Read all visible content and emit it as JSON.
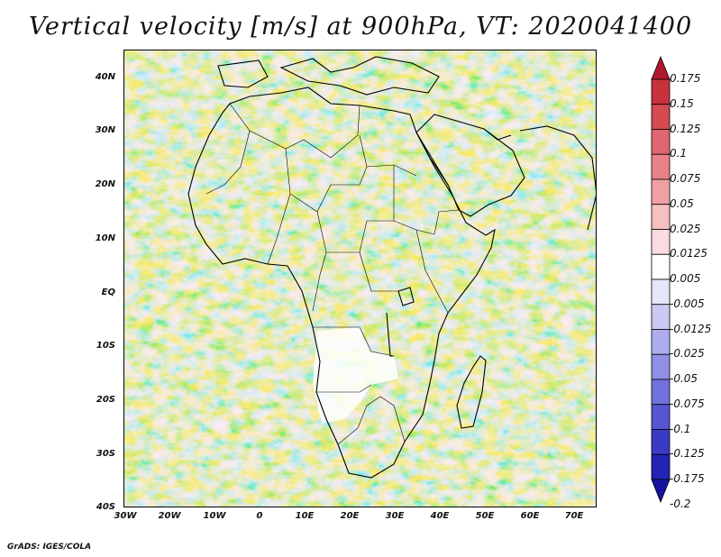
{
  "title": "Vertical velocity [m/s] at 900hPa, VT: 2020041400",
  "credit": "GrADS: IGES/COLA",
  "map": {
    "region": "Africa and surrounding oceans",
    "variable": "Vertical velocity",
    "units": "m/s",
    "level": "900hPa",
    "valid_time": "2020041400",
    "lat_labels": [
      "40N",
      "30N",
      "20N",
      "10N",
      "EQ",
      "10S",
      "20S",
      "30S",
      "40S"
    ],
    "lon_labels": [
      "30W",
      "20W",
      "10W",
      "0",
      "10E",
      "20E",
      "30E",
      "40E",
      "50E",
      "60E",
      "70E"
    ],
    "lat_range": [
      -40,
      45
    ],
    "lon_range": [
      -30,
      75
    ]
  },
  "colorbar": {
    "labels": [
      "0.175",
      "0.15",
      "0.125",
      "0.1",
      "0.075",
      "0.05",
      "0.025",
      "0.0125",
      "0.005",
      "-0.005",
      "-0.0125",
      "-0.025",
      "-0.05",
      "-0.075",
      "-0.1",
      "-0.125",
      "-0.175",
      "-0.2"
    ],
    "colors": [
      "#b2182b",
      "#c8323c",
      "#d64a52",
      "#e06670",
      "#e98189",
      "#f0a0a5",
      "#f6bfc2",
      "#fbdcde",
      "#ffffff",
      "#e6e6fb",
      "#cacaf3",
      "#adaded",
      "#8f8fe6",
      "#7272dc",
      "#5656d2",
      "#3a3ac4",
      "#2323b4",
      "#1414a0"
    ]
  }
}
